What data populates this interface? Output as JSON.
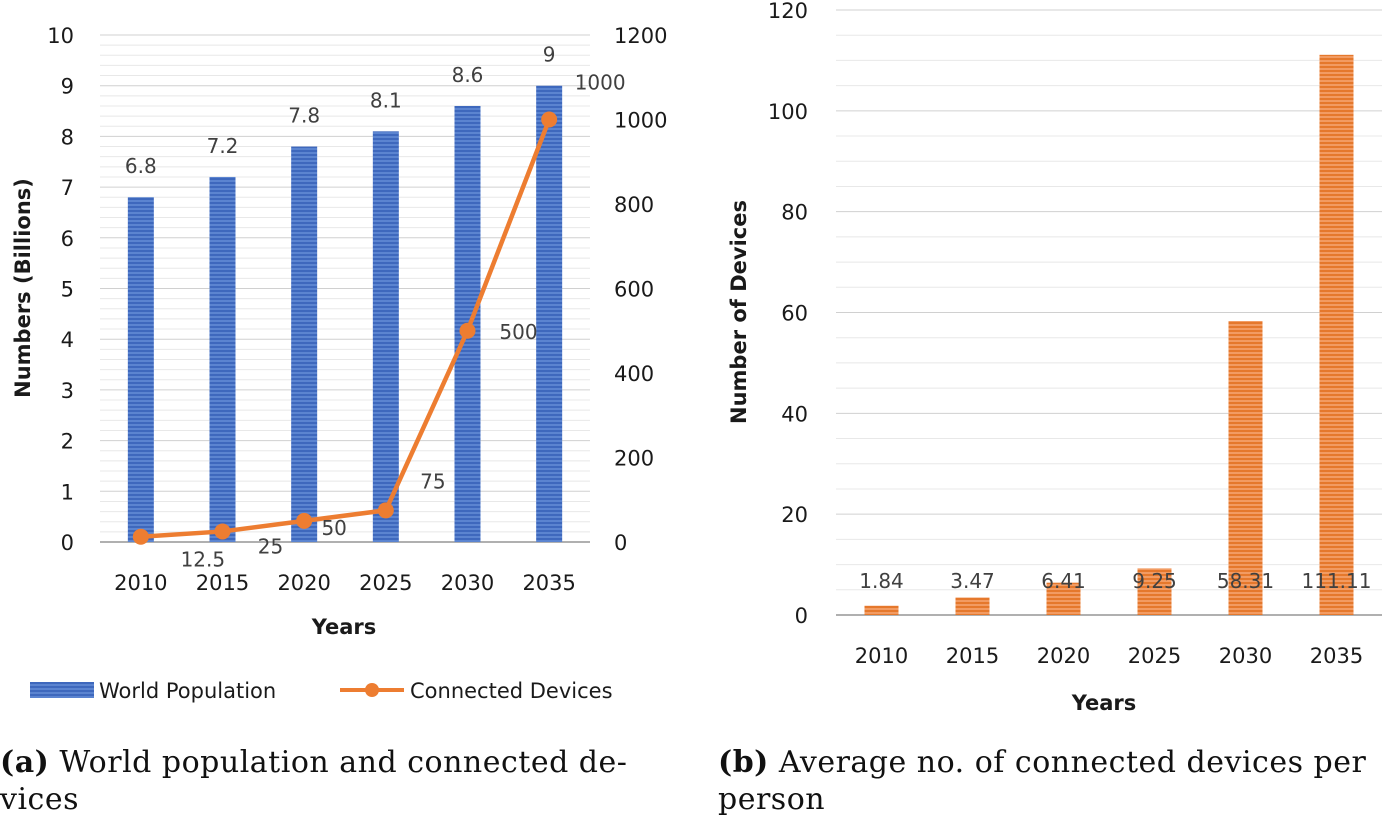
{
  "chart_data": [
    {
      "id": "a",
      "type": "bar+line",
      "categories": [
        "2010",
        "2015",
        "2020",
        "2025",
        "2030",
        "2035"
      ],
      "series": [
        {
          "name": "World Population",
          "type": "bar",
          "axis": "left",
          "values": [
            6.8,
            7.2,
            7.8,
            8.1,
            8.6,
            9
          ],
          "labels": [
            "6.8",
            "7.2",
            "7.8",
            "8.1",
            "8.6",
            "9"
          ],
          "color": "#4472C4"
        },
        {
          "name": "Connected Devices",
          "type": "line",
          "axis": "right",
          "values": [
            12.5,
            25,
            50,
            75,
            500,
            1000
          ],
          "labels": [
            "12.5",
            "25",
            "50",
            "75",
            "500",
            "1000"
          ],
          "color": "#ED7D31"
        }
      ],
      "xlabel": "Years",
      "ylabel": "Numbers (Billions)",
      "ylim": [
        0,
        10
      ],
      "yticks": [
        "0",
        "1",
        "2",
        "3",
        "4",
        "5",
        "6",
        "7",
        "8",
        "9",
        "10"
      ],
      "y2lim": [
        0,
        1200
      ],
      "y2ticks": [
        "0",
        "200",
        "400",
        "600",
        "800",
        "1000",
        "1200"
      ],
      "legend": "bottom",
      "caption_tag": "(a)",
      "caption_line1": "World population and connected de-",
      "caption_line2": "vices"
    },
    {
      "id": "b",
      "type": "bar",
      "categories": [
        "2010",
        "2015",
        "2020",
        "2025",
        "2030",
        "2035"
      ],
      "values": [
        1.84,
        3.47,
        6.41,
        9.25,
        58.31,
        111.11
      ],
      "labels": [
        "1.84",
        "3.47",
        "6.41",
        "9.25",
        "58.31",
        "111.11"
      ],
      "color": "#ED7D31",
      "xlabel": "Years",
      "ylabel": "Number  of  Devices",
      "ylim": [
        0,
        120
      ],
      "yticks": [
        "0",
        "20",
        "40",
        "60",
        "80",
        "100",
        "120"
      ],
      "caption_tag": "(b)",
      "caption_line1": "Average no. of connected devices per",
      "caption_line2": "person"
    }
  ]
}
